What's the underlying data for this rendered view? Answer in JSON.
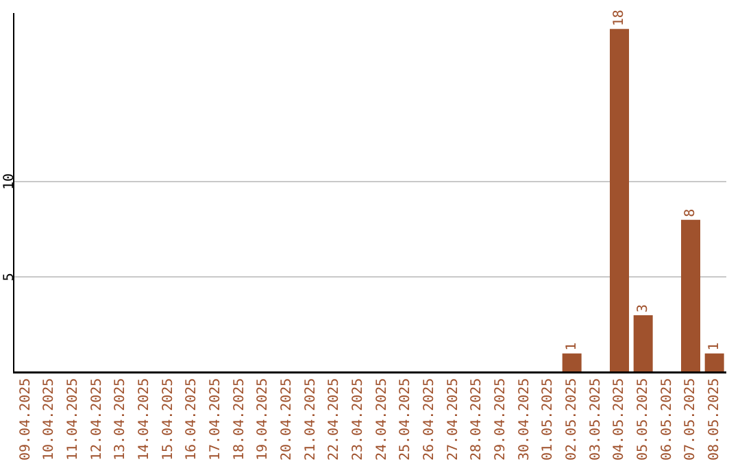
{
  "chart_data": {
    "type": "bar",
    "categories": [
      "09.04.2025",
      "10.04.2025",
      "11.04.2025",
      "12.04.2025",
      "13.04.2025",
      "14.04.2025",
      "15.04.2025",
      "16.04.2025",
      "17.04.2025",
      "18.04.2025",
      "19.04.2025",
      "20.04.2025",
      "21.04.2025",
      "22.04.2025",
      "23.04.2025",
      "24.04.2025",
      "25.04.2025",
      "26.04.2025",
      "27.04.2025",
      "28.04.2025",
      "29.04.2025",
      "30.04.2025",
      "01.05.2025",
      "02.05.2025",
      "03.05.2025",
      "04.05.2025",
      "05.05.2025",
      "06.05.2025",
      "07.05.2025",
      "08.05.2025"
    ],
    "values": [
      0,
      0,
      0,
      0,
      0,
      0,
      0,
      0,
      0,
      0,
      0,
      0,
      0,
      0,
      0,
      0,
      0,
      0,
      0,
      0,
      0,
      0,
      0,
      1,
      0,
      18,
      3,
      0,
      8,
      1
    ],
    "value_labels": [
      null,
      null,
      null,
      null,
      null,
      null,
      null,
      null,
      null,
      null,
      null,
      null,
      null,
      null,
      null,
      null,
      null,
      null,
      null,
      null,
      null,
      null,
      null,
      "1",
      null,
      "18",
      "3",
      null,
      "8",
      "1"
    ],
    "color": "#a0522d",
    "ylim": [
      0,
      18.8
    ],
    "yticks": [
      5,
      10
    ],
    "grid": "y",
    "legend": false
  }
}
